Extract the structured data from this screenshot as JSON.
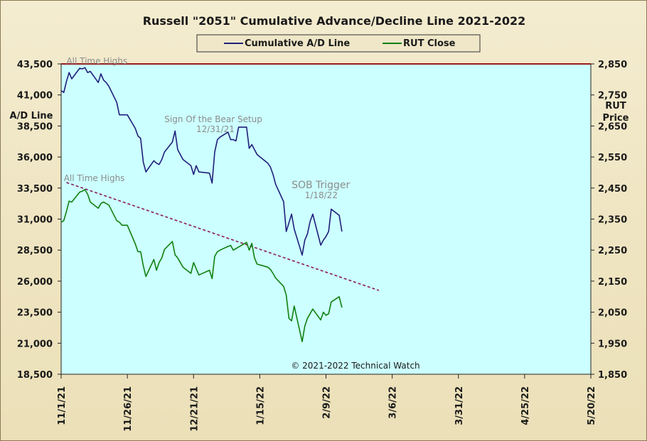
{
  "chart_data": {
    "type": "line",
    "title": "Russell \"2051\" Cumulative Advance/Decline Line 2021-2022",
    "legend": {
      "placement": "top-center",
      "items": [
        "Cumulative A/D Line",
        "RUT Close"
      ]
    },
    "x_tick_labels": [
      "11/1/21",
      "11/26/21",
      "12/21/21",
      "1/15/22",
      "2/9/22",
      "3/6/22",
      "3/31/22",
      "4/25/22",
      "5/20/22"
    ],
    "x_range": [
      "2021-11-01",
      "2022-05-20"
    ],
    "left_axis": {
      "label_lines": [
        "A/D Line"
      ],
      "range": [
        18500,
        43500
      ],
      "ticks": [
        "18,500",
        "21,000",
        "23,500",
        "26,000",
        "28,500",
        "31,000",
        "33,500",
        "36,000",
        "38,500",
        "41,000",
        "43,500"
      ]
    },
    "right_axis": {
      "label_lines": [
        "RUT",
        "Price"
      ],
      "range": [
        1850,
        2850
      ],
      "ticks": [
        "1,850",
        "1,950",
        "2,050",
        "2,150",
        "2,250",
        "2,350",
        "2,450",
        "2,550",
        "2,650",
        "2,750",
        "2,850"
      ]
    },
    "grid": false,
    "series": [
      {
        "name": "Cumulative A/D Line",
        "axis": "left",
        "color": "#1f1f7a",
        "points": [
          [
            "2021-11-01",
            41350
          ],
          [
            "2021-11-02",
            41200
          ],
          [
            "2021-11-03",
            42100
          ],
          [
            "2021-11-04",
            42800
          ],
          [
            "2021-11-05",
            42300
          ],
          [
            "2021-11-08",
            43150
          ],
          [
            "2021-11-09",
            43100
          ],
          [
            "2021-11-10",
            43200
          ],
          [
            "2021-11-11",
            42800
          ],
          [
            "2021-11-12",
            42900
          ],
          [
            "2021-11-15",
            42000
          ],
          [
            "2021-11-16",
            42700
          ],
          [
            "2021-11-17",
            42200
          ],
          [
            "2021-11-18",
            42000
          ],
          [
            "2021-11-19",
            41700
          ],
          [
            "2021-11-22",
            40400
          ],
          [
            "2021-11-23",
            39400
          ],
          [
            "2021-11-24",
            39400
          ],
          [
            "2021-11-26",
            39400
          ],
          [
            "2021-11-29",
            38300
          ],
          [
            "2021-11-30",
            37700
          ],
          [
            "2021-12-01",
            37500
          ],
          [
            "2021-12-02",
            35600
          ],
          [
            "2021-12-03",
            34800
          ],
          [
            "2021-12-06",
            35700
          ],
          [
            "2021-12-07",
            35500
          ],
          [
            "2021-12-08",
            35400
          ],
          [
            "2021-12-09",
            35800
          ],
          [
            "2021-12-10",
            36400
          ],
          [
            "2021-12-13",
            37200
          ],
          [
            "2021-12-14",
            38100
          ],
          [
            "2021-12-15",
            36600
          ],
          [
            "2021-12-16",
            36200
          ],
          [
            "2021-12-17",
            35800
          ],
          [
            "2021-12-20",
            35300
          ],
          [
            "2021-12-21",
            34600
          ],
          [
            "2021-12-22",
            35300
          ],
          [
            "2021-12-23",
            34800
          ],
          [
            "2021-12-27",
            34700
          ],
          [
            "2021-12-28",
            33900
          ],
          [
            "2021-12-29",
            36400
          ],
          [
            "2021-12-30",
            37400
          ],
          [
            "2021-12-31",
            37600
          ],
          [
            "2022-01-03",
            38000
          ],
          [
            "2022-01-04",
            37400
          ],
          [
            "2022-01-05",
            37400
          ],
          [
            "2022-01-06",
            37300
          ],
          [
            "2022-01-07",
            38400
          ],
          [
            "2022-01-10",
            38400
          ],
          [
            "2022-01-11",
            36700
          ],
          [
            "2022-01-12",
            37000
          ],
          [
            "2022-01-13",
            36600
          ],
          [
            "2022-01-14",
            36200
          ],
          [
            "2022-01-18",
            35500
          ],
          [
            "2022-01-19",
            35200
          ],
          [
            "2022-01-20",
            34600
          ],
          [
            "2022-01-21",
            33800
          ],
          [
            "2022-01-24",
            32400
          ],
          [
            "2022-01-25",
            30000
          ],
          [
            "2022-01-26",
            30700
          ],
          [
            "2022-01-27",
            31400
          ],
          [
            "2022-01-28",
            30200
          ],
          [
            "2022-01-31",
            28100
          ],
          [
            "2022-02-01",
            29300
          ],
          [
            "2022-02-02",
            29800
          ],
          [
            "2022-02-03",
            30800
          ],
          [
            "2022-02-04",
            31400
          ],
          [
            "2022-02-07",
            28900
          ],
          [
            "2022-02-08",
            29300
          ],
          [
            "2022-02-09",
            29600
          ],
          [
            "2022-02-10",
            30000
          ],
          [
            "2022-02-11",
            31800
          ],
          [
            "2022-02-14",
            31300
          ],
          [
            "2022-02-15",
            30000
          ]
        ]
      },
      {
        "name": "RUT Close",
        "axis": "right",
        "color": "#108010",
        "points": [
          [
            "2021-11-01",
            2340
          ],
          [
            "2021-11-02",
            2345
          ],
          [
            "2021-11-03",
            2375
          ],
          [
            "2021-11-04",
            2408
          ],
          [
            "2021-11-05",
            2405
          ],
          [
            "2021-11-08",
            2437
          ],
          [
            "2021-11-09",
            2440
          ],
          [
            "2021-11-10",
            2445
          ],
          [
            "2021-11-11",
            2430
          ],
          [
            "2021-11-12",
            2405
          ],
          [
            "2021-11-15",
            2385
          ],
          [
            "2021-11-16",
            2400
          ],
          [
            "2021-11-17",
            2405
          ],
          [
            "2021-11-18",
            2400
          ],
          [
            "2021-11-19",
            2395
          ],
          [
            "2021-11-22",
            2345
          ],
          [
            "2021-11-23",
            2340
          ],
          [
            "2021-11-24",
            2330
          ],
          [
            "2021-11-26",
            2330
          ],
          [
            "2021-11-29",
            2270
          ],
          [
            "2021-11-30",
            2245
          ],
          [
            "2021-12-01",
            2245
          ],
          [
            "2021-12-02",
            2200
          ],
          [
            "2021-12-03",
            2165
          ],
          [
            "2021-12-06",
            2220
          ],
          [
            "2021-12-07",
            2185
          ],
          [
            "2021-12-08",
            2210
          ],
          [
            "2021-12-09",
            2225
          ],
          [
            "2021-12-10",
            2252
          ],
          [
            "2021-12-13",
            2278
          ],
          [
            "2021-12-14",
            2235
          ],
          [
            "2021-12-15",
            2225
          ],
          [
            "2021-12-16",
            2210
          ],
          [
            "2021-12-17",
            2195
          ],
          [
            "2021-12-20",
            2175
          ],
          [
            "2021-12-21",
            2210
          ],
          [
            "2021-12-22",
            2190
          ],
          [
            "2021-12-23",
            2170
          ],
          [
            "2021-12-27",
            2185
          ],
          [
            "2021-12-28",
            2158
          ],
          [
            "2021-12-29",
            2230
          ],
          [
            "2021-12-30",
            2245
          ],
          [
            "2021-12-31",
            2250
          ],
          [
            "2022-01-03",
            2262
          ],
          [
            "2022-01-04",
            2265
          ],
          [
            "2022-01-05",
            2250
          ],
          [
            "2022-01-06",
            2255
          ],
          [
            "2022-01-07",
            2260
          ],
          [
            "2022-01-10",
            2275
          ],
          [
            "2022-01-11",
            2250
          ],
          [
            "2022-01-12",
            2272
          ],
          [
            "2022-01-13",
            2225
          ],
          [
            "2022-01-14",
            2205
          ],
          [
            "2022-01-18",
            2195
          ],
          [
            "2022-01-19",
            2188
          ],
          [
            "2022-01-20",
            2175
          ],
          [
            "2022-01-21",
            2160
          ],
          [
            "2022-01-24",
            2133
          ],
          [
            "2022-01-25",
            2105
          ],
          [
            "2022-01-26",
            2030
          ],
          [
            "2022-01-27",
            2022
          ],
          [
            "2022-01-28",
            2070
          ],
          [
            "2022-01-31",
            1955
          ],
          [
            "2022-02-01",
            2005
          ],
          [
            "2022-02-02",
            2030
          ],
          [
            "2022-02-03",
            2045
          ],
          [
            "2022-02-04",
            2060
          ],
          [
            "2022-02-07",
            2025
          ],
          [
            "2022-02-08",
            2050
          ],
          [
            "2022-02-09",
            2040
          ],
          [
            "2022-02-10",
            2045
          ],
          [
            "2022-02-11",
            2083
          ],
          [
            "2022-02-14",
            2100
          ],
          [
            "2022-02-15",
            2065
          ]
        ]
      }
    ],
    "trendline": {
      "axis": "right",
      "color": "#8b1a5a",
      "style": "dashed",
      "from": [
        "2021-11-03",
        2468
      ],
      "to": [
        "2022-03-01",
        2120
      ]
    },
    "annotations": [
      {
        "text": "All Time Highs",
        "date": "2021-11-03",
        "axis": "left",
        "value": 43500,
        "size": "small"
      },
      {
        "text": "Sign Of the Bear Setup",
        "date": "2021-12-10",
        "axis": "left",
        "value": 38800,
        "size": "small"
      },
      {
        "text": "12/31/21",
        "date": "2021-12-22",
        "axis": "left",
        "value": 38000,
        "size": "small"
      },
      {
        "text": "All Time Highs",
        "date": "2021-11-02",
        "axis": "right",
        "value": 2472,
        "size": "small"
      },
      {
        "text": "SOB Trigger",
        "date": "2022-01-27",
        "axis": "left",
        "value": 33500,
        "size": "large"
      },
      {
        "text": "1/18/22",
        "date": "2022-02-01",
        "axis": "left",
        "value": 32700,
        "size": "small"
      }
    ],
    "copyright": "© 2021-2022  Technical Watch"
  }
}
